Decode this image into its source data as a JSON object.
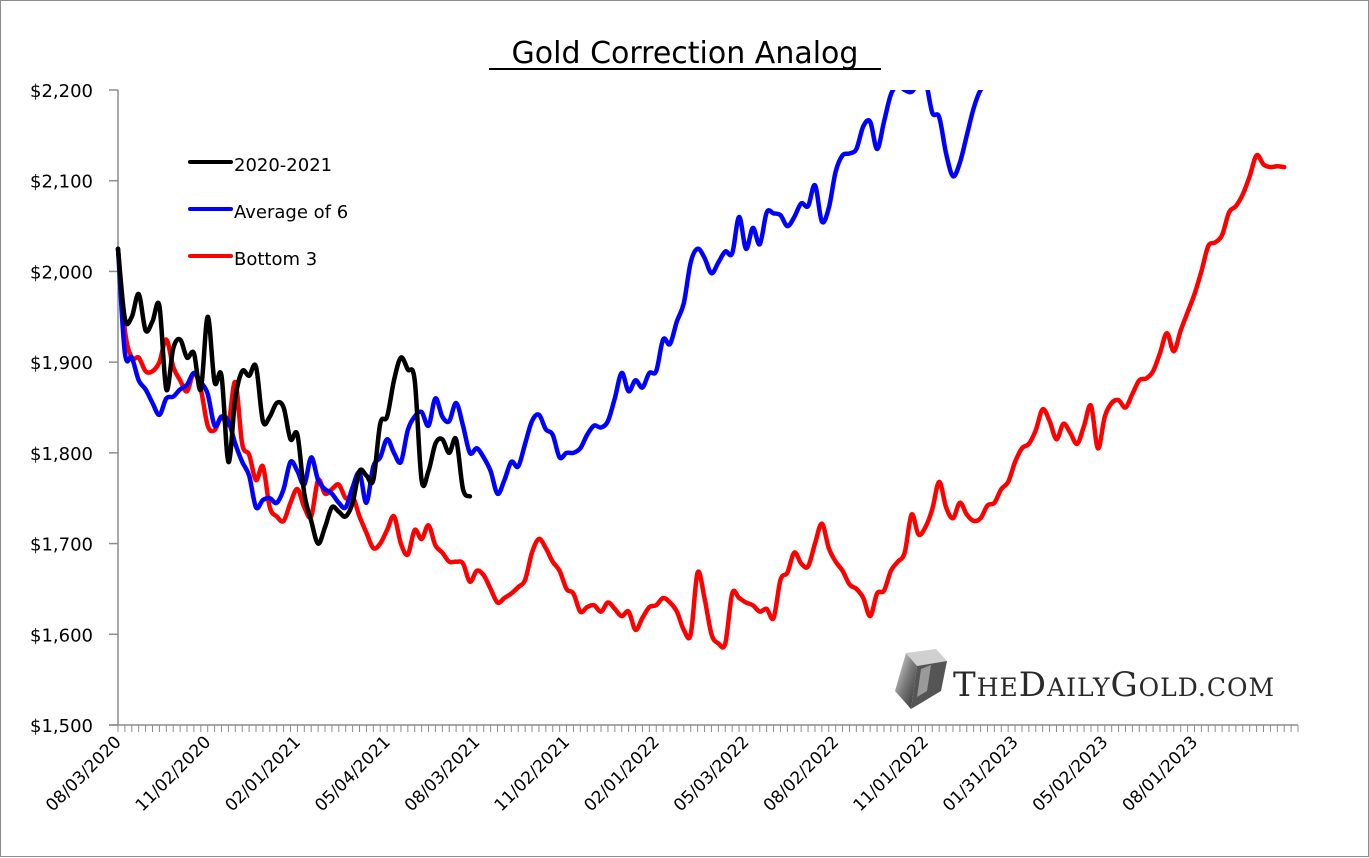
{
  "chart_data": {
    "type": "line",
    "title": "Gold Correction Analog",
    "xlabel": "",
    "ylabel": "",
    "ylim": [
      1500,
      2200
    ],
    "yticks": [
      1500,
      1600,
      1700,
      1800,
      1900,
      2000,
      2100,
      2200
    ],
    "ytick_labels": [
      "$1,500",
      "$1,600",
      "$1,700",
      "$1,800",
      "$1,900",
      "$2,000",
      "$2,100",
      "$2,200"
    ],
    "x_unit": "weeks since 08/03/2020",
    "xlim": [
      0,
      171
    ],
    "xtick_positions": [
      0,
      13,
      26,
      39,
      52,
      65,
      78,
      91,
      104,
      117,
      130,
      143,
      156
    ],
    "xtick_labels": [
      "08/03/2020",
      "11/02/2020",
      "02/01/2021",
      "05/04/2021",
      "08/03/2021",
      "11/02/2021",
      "02/01/2022",
      "05/03/2022",
      "08/02/2022",
      "11/01/2022",
      "01/31/2023",
      "05/02/2023",
      "08/01/2023"
    ],
    "grid": false,
    "legend_position": "top-left",
    "series": [
      {
        "name": "2020-2021",
        "color": "#000000",
        "values": [
          2025,
          1948,
          1950,
          1975,
          1935,
          1945,
          1962,
          1870,
          1915,
          1925,
          1905,
          1910,
          1870,
          1950,
          1878,
          1885,
          1790,
          1860,
          1890,
          1885,
          1895,
          1835,
          1840,
          1855,
          1850,
          1815,
          1820,
          1755,
          1725,
          1700,
          1718,
          1740,
          1735,
          1730,
          1745,
          1780,
          1775,
          1770,
          1832,
          1840,
          1880,
          1905,
          1892,
          1880,
          1770,
          1780,
          1810,
          1815,
          1800,
          1815,
          1760,
          1752
        ]
      },
      {
        "name": "Average of 6",
        "color": "#0000ff",
        "values": [
          2025,
          1910,
          1905,
          1880,
          1870,
          1855,
          1842,
          1860,
          1862,
          1870,
          1875,
          1888,
          1878,
          1865,
          1830,
          1840,
          1835,
          1810,
          1790,
          1775,
          1740,
          1748,
          1750,
          1745,
          1760,
          1790,
          1780,
          1765,
          1795,
          1770,
          1760,
          1755,
          1745,
          1740,
          1762,
          1778,
          1745,
          1785,
          1795,
          1815,
          1800,
          1790,
          1825,
          1840,
          1845,
          1830,
          1860,
          1840,
          1835,
          1855,
          1830,
          1800,
          1805,
          1795,
          1780,
          1755,
          1770,
          1790,
          1785,
          1810,
          1835,
          1842,
          1826,
          1820,
          1795,
          1800,
          1800,
          1805,
          1820,
          1830,
          1828,
          1835,
          1860,
          1888,
          1868,
          1880,
          1872,
          1888,
          1890,
          1925,
          1920,
          1945,
          1965,
          2010,
          2025,
          2015,
          1998,
          2010,
          2022,
          2020,
          2060,
          2025,
          2048,
          2030,
          2065,
          2064,
          2062,
          2050,
          2060,
          2075,
          2072,
          2095,
          2055,
          2070,
          2110,
          2128,
          2130,
          2135,
          2160,
          2165,
          2135,
          2165,
          2195,
          2205,
          2200,
          2198,
          2208,
          2210,
          2175,
          2170,
          2130,
          2105,
          2120,
          2150,
          2180,
          2200,
          2205
        ]
      },
      {
        "name": "Bottom 3",
        "color": "#ff0000",
        "values": [
          2025,
          1935,
          1905,
          1905,
          1890,
          1890,
          1900,
          1925,
          1895,
          1880,
          1868,
          1888,
          1870,
          1830,
          1825,
          1840,
          1832,
          1878,
          1810,
          1798,
          1770,
          1785,
          1740,
          1730,
          1725,
          1745,
          1760,
          1740,
          1730,
          1770,
          1755,
          1760,
          1765,
          1750,
          1752,
          1730,
          1712,
          1695,
          1700,
          1715,
          1730,
          1700,
          1688,
          1715,
          1705,
          1720,
          1698,
          1690,
          1680,
          1680,
          1678,
          1658,
          1670,
          1665,
          1650,
          1635,
          1640,
          1645,
          1652,
          1660,
          1690,
          1705,
          1695,
          1680,
          1670,
          1650,
          1645,
          1625,
          1630,
          1632,
          1625,
          1635,
          1628,
          1620,
          1625,
          1605,
          1618,
          1630,
          1632,
          1640,
          1635,
          1625,
          1605,
          1600,
          1668,
          1640,
          1600,
          1590,
          1590,
          1645,
          1640,
          1635,
          1632,
          1625,
          1628,
          1618,
          1660,
          1668,
          1690,
          1678,
          1675,
          1700,
          1722,
          1695,
          1680,
          1670,
          1655,
          1650,
          1640,
          1620,
          1645,
          1648,
          1670,
          1680,
          1690,
          1732,
          1710,
          1718,
          1738,
          1768,
          1740,
          1728,
          1745,
          1732,
          1725,
          1728,
          1742,
          1745,
          1760,
          1768,
          1790,
          1805,
          1810,
          1825,
          1848,
          1835,
          1815,
          1832,
          1822,
          1810,
          1830,
          1852,
          1805,
          1840,
          1855,
          1858,
          1850,
          1865,
          1880,
          1882,
          1890,
          1910,
          1932,
          1912,
          1935,
          1955,
          1975,
          2000,
          2028,
          2032,
          2040,
          2065,
          2072,
          2085,
          2105,
          2128,
          2118,
          2115,
          2116,
          2115
        ]
      }
    ]
  },
  "watermark": {
    "text": "TheDailyGold.com",
    "icon": "gold-bar-icon"
  }
}
